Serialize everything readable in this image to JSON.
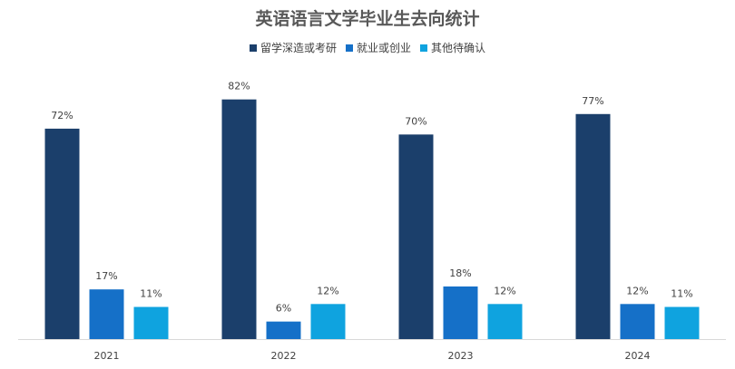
{
  "chart_data": {
    "type": "bar",
    "title": "英语语言文学毕业生去向统计",
    "xlabel": "",
    "ylabel": "",
    "categories": [
      "2021",
      "2022",
      "2023",
      "2024"
    ],
    "value_suffix": "%",
    "ylim": [
      0,
      85
    ],
    "grid": false,
    "legend_position": "top",
    "series": [
      {
        "name": "留学深造或考研",
        "color": "#1b3f6b",
        "values": [
          72,
          82,
          70,
          77
        ]
      },
      {
        "name": "就业或创业",
        "color": "#1570c8",
        "values": [
          17,
          6,
          18,
          12
        ]
      },
      {
        "name": "其他待确认",
        "color": "#0fa3df",
        "values": [
          11,
          12,
          12,
          11
        ]
      }
    ]
  }
}
